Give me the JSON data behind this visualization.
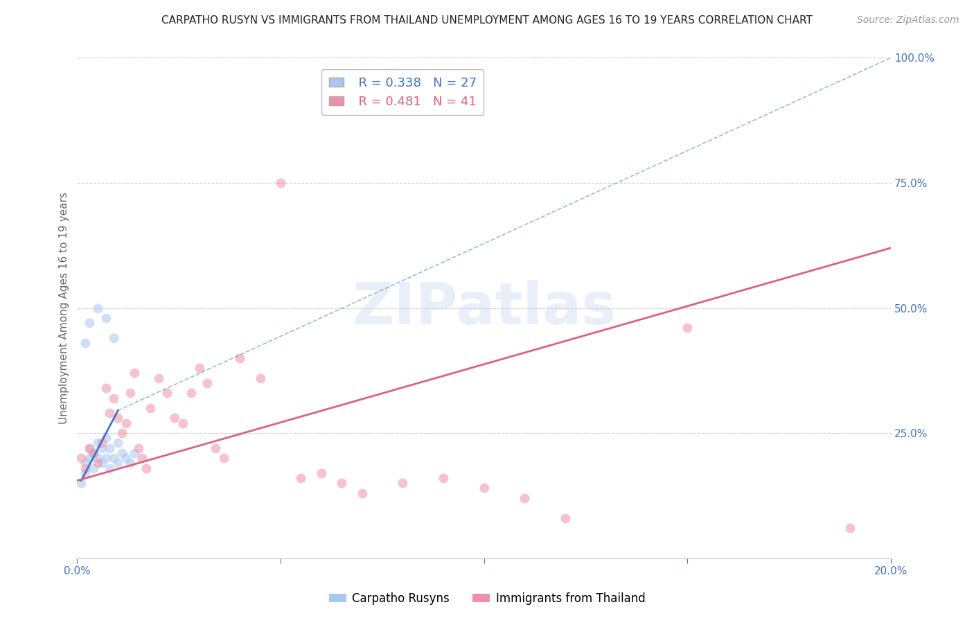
{
  "title": "CARPATHO RUSYN VS IMMIGRANTS FROM THAILAND UNEMPLOYMENT AMONG AGES 16 TO 19 YEARS CORRELATION CHART",
  "source": "Source: ZipAtlas.com",
  "ylabel": "Unemployment Among Ages 16 to 19 years",
  "xlim": [
    0.0,
    0.2
  ],
  "ylim": [
    0.0,
    1.0
  ],
  "xticks": [
    0.0,
    0.05,
    0.1,
    0.15,
    0.2
  ],
  "xtick_labels": [
    "0.0%",
    "",
    "",
    "",
    "20.0%"
  ],
  "yticks": [
    0.0,
    0.25,
    0.5,
    0.75,
    1.0
  ],
  "ytick_labels": [
    "",
    "25.0%",
    "50.0%",
    "75.0%",
    "100.0%"
  ],
  "blue_color": "#a8c8f0",
  "pink_color": "#f090a8",
  "blue_line_color": "#4472c4",
  "pink_line_color": "#e06080",
  "legend_r_blue": "R = 0.338",
  "legend_n_blue": "N = 27",
  "legend_r_pink": "R = 0.481",
  "legend_n_pink": "N = 41",
  "blue_scatter_x": [
    0.001,
    0.002,
    0.002,
    0.003,
    0.003,
    0.004,
    0.004,
    0.005,
    0.005,
    0.006,
    0.006,
    0.007,
    0.007,
    0.008,
    0.008,
    0.009,
    0.01,
    0.01,
    0.011,
    0.012,
    0.013,
    0.014,
    0.002,
    0.003,
    0.005,
    0.007,
    0.009
  ],
  "blue_scatter_y": [
    0.15,
    0.17,
    0.19,
    0.2,
    0.22,
    0.21,
    0.18,
    0.23,
    0.2,
    0.22,
    0.19,
    0.24,
    0.2,
    0.22,
    0.18,
    0.2,
    0.23,
    0.19,
    0.21,
    0.2,
    0.19,
    0.21,
    0.43,
    0.47,
    0.5,
    0.48,
    0.44
  ],
  "pink_scatter_x": [
    0.001,
    0.002,
    0.003,
    0.004,
    0.005,
    0.006,
    0.007,
    0.008,
    0.009,
    0.01,
    0.011,
    0.012,
    0.013,
    0.014,
    0.015,
    0.016,
    0.017,
    0.018,
    0.02,
    0.022,
    0.024,
    0.026,
    0.028,
    0.03,
    0.032,
    0.034,
    0.036,
    0.04,
    0.045,
    0.05,
    0.055,
    0.06,
    0.065,
    0.07,
    0.08,
    0.09,
    0.1,
    0.11,
    0.12,
    0.15,
    0.19
  ],
  "pink_scatter_y": [
    0.2,
    0.18,
    0.22,
    0.21,
    0.19,
    0.23,
    0.34,
    0.29,
    0.32,
    0.28,
    0.25,
    0.27,
    0.33,
    0.37,
    0.22,
    0.2,
    0.18,
    0.3,
    0.36,
    0.33,
    0.28,
    0.27,
    0.33,
    0.38,
    0.35,
    0.22,
    0.2,
    0.4,
    0.36,
    0.75,
    0.16,
    0.17,
    0.15,
    0.13,
    0.15,
    0.16,
    0.14,
    0.12,
    0.08,
    0.46,
    0.06
  ],
  "blue_solid_line_x": [
    0.001,
    0.01
  ],
  "blue_solid_line_y": [
    0.155,
    0.295
  ],
  "blue_dash_line_x": [
    0.01,
    0.2
  ],
  "blue_dash_line_y": [
    0.295,
    1.0
  ],
  "pink_line_x": [
    0.0,
    0.2
  ],
  "pink_line_y": [
    0.155,
    0.62
  ],
  "title_fontsize": 11,
  "axis_label_fontsize": 11,
  "tick_fontsize": 11,
  "legend_fontsize": 13,
  "source_fontsize": 10,
  "marker_size": 100,
  "marker_alpha": 0.55,
  "grid_color": "#d0d0d0",
  "axis_label_color": "#666666",
  "tick_color": "#4472c4",
  "background_color": "#ffffff",
  "watermark_text": "ZIPatlas",
  "watermark_color": "#c8d8f0",
  "watermark_alpha": 0.4
}
